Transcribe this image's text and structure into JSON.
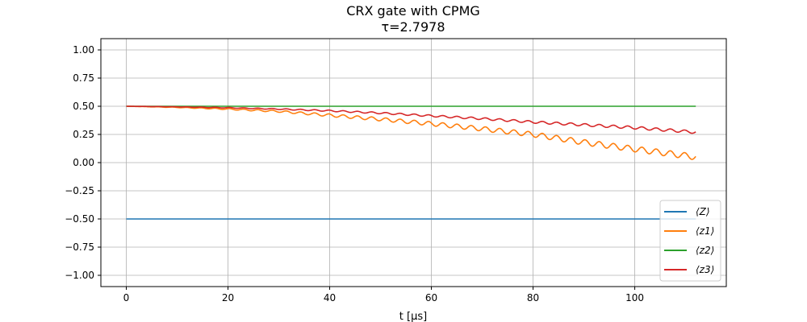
{
  "chart_data": {
    "type": "line",
    "title_line1": "CRX gate with CPMG",
    "title_line2": "τ=2.7978",
    "xlabel": "t [μs]",
    "ylabel": "",
    "xlim": [
      -5,
      118
    ],
    "ylim": [
      -1.1,
      1.1
    ],
    "xticks": [
      0,
      20,
      40,
      60,
      80,
      100
    ],
    "xtick_labels": [
      "0",
      "20",
      "40",
      "60",
      "80",
      "100"
    ],
    "yticks": [
      -1.0,
      -0.75,
      -0.5,
      -0.25,
      0.0,
      0.25,
      0.5,
      0.75,
      1.0
    ],
    "ytick_labels": [
      "−1.00",
      "−0.75",
      "−0.50",
      "−0.25",
      "0.00",
      "0.25",
      "0.50",
      "0.75",
      "1.00"
    ],
    "grid": true,
    "legend_position": "lower-right",
    "tau": 2.7978,
    "series": [
      {
        "name": "⟨Z⟩",
        "color": "#1f77b4",
        "x": [
          0,
          10,
          20,
          30,
          40,
          50,
          60,
          70,
          80,
          90,
          100,
          112
        ],
        "y": [
          -0.5,
          -0.5,
          -0.5,
          -0.5,
          -0.5,
          -0.5,
          -0.5,
          -0.5,
          -0.5,
          -0.5,
          -0.5,
          -0.5
        ]
      },
      {
        "name": "⟨z1⟩",
        "color": "#ff7f0e",
        "x": [
          0,
          10,
          20,
          30,
          40,
          50,
          60,
          70,
          80,
          90,
          100,
          112
        ],
        "y": [
          0.5,
          0.49,
          0.475,
          0.455,
          0.42,
          0.385,
          0.345,
          0.3,
          0.25,
          0.18,
          0.12,
          0.05
        ],
        "oscillation_amplitude": [
          0.0,
          0.002,
          0.005,
          0.008,
          0.012,
          0.015,
          0.018,
          0.02,
          0.022,
          0.024,
          0.025,
          0.026
        ]
      },
      {
        "name": "⟨z2⟩",
        "color": "#2ca02c",
        "x": [
          0,
          10,
          20,
          30,
          40,
          50,
          60,
          70,
          80,
          90,
          100,
          112
        ],
        "y": [
          0.5,
          0.5,
          0.5,
          0.5,
          0.5,
          0.5,
          0.5,
          0.5,
          0.5,
          0.5,
          0.5,
          0.5
        ]
      },
      {
        "name": "⟨z3⟩",
        "color": "#d62728",
        "x": [
          0,
          10,
          20,
          30,
          40,
          50,
          60,
          70,
          80,
          90,
          100,
          112
        ],
        "y": [
          0.5,
          0.495,
          0.487,
          0.475,
          0.46,
          0.44,
          0.415,
          0.39,
          0.36,
          0.335,
          0.31,
          0.27
        ],
        "oscillation_amplitude": [
          0.0,
          0.001,
          0.003,
          0.004,
          0.006,
          0.007,
          0.008,
          0.009,
          0.01,
          0.011,
          0.012,
          0.012
        ]
      }
    ]
  }
}
